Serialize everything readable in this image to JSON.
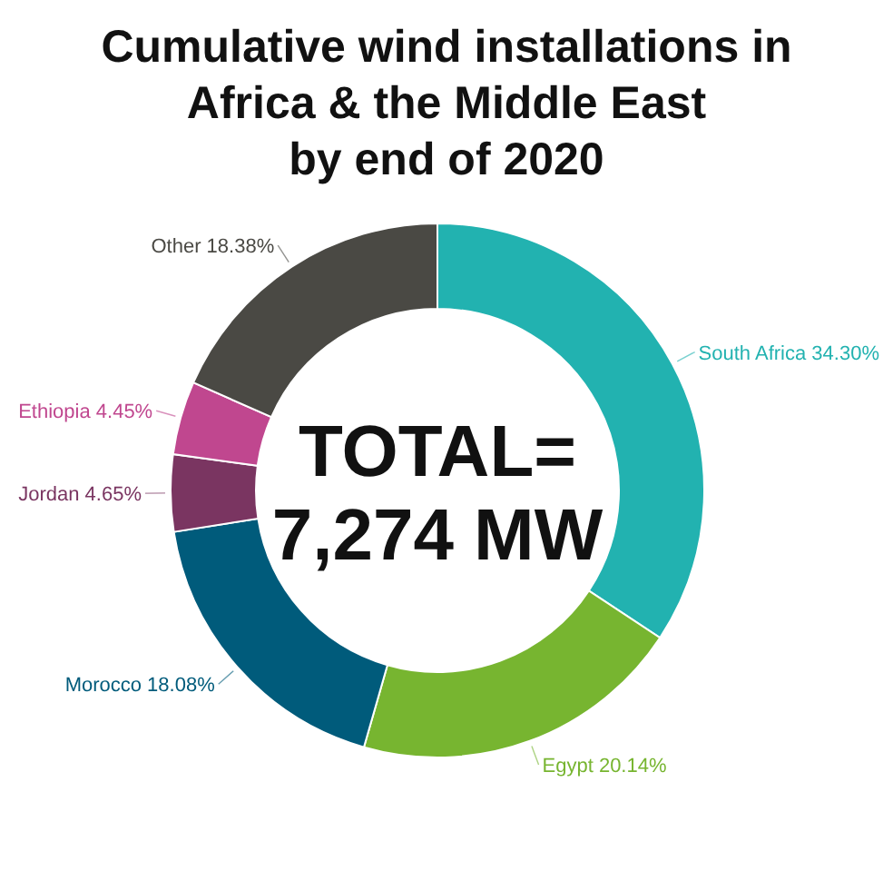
{
  "chart_data": {
    "type": "donut",
    "title": "Cumulative wind installations in\nAfrica & the Middle East\nby end of 2020",
    "categories": [
      "South Africa",
      "Egypt",
      "Morocco",
      "Jordan",
      "Ethiopia",
      "Other"
    ],
    "values": [
      34.3,
      20.14,
      18.08,
      4.65,
      4.45,
      18.38
    ],
    "value_labels": [
      "34.30%",
      "20.14%",
      "18.08%",
      "4.65%",
      "4.45%",
      "18.38%"
    ],
    "colors": [
      "#22b2b0",
      "#77b530",
      "#005b7b",
      "#7a3561",
      "#c0478f",
      "#4a4944"
    ],
    "annotations": [
      "TOTAL=",
      "7,274 MW"
    ]
  }
}
